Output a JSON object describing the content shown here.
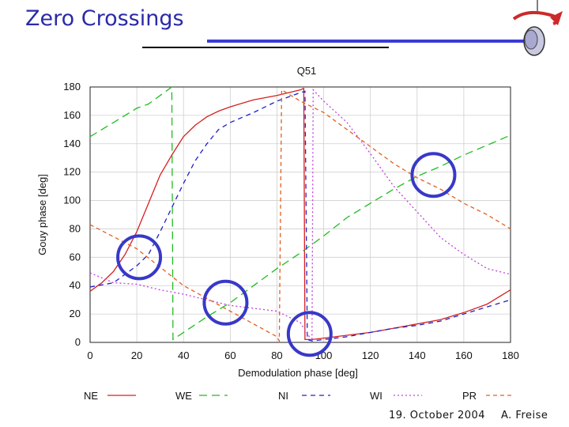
{
  "slide": {
    "title": "Zero Crossings",
    "footer_date": "19. October 2004",
    "footer_author": "A. Freise"
  },
  "colors": {
    "title": "#2a2aa8",
    "accent_bar": "#3a3ad8",
    "circle": "#3838c8",
    "arrow": "#cc2a2a"
  },
  "chart_data": {
    "type": "line",
    "title": "Q51",
    "xlabel": "Demodulation phase [deg]",
    "ylabel": "Gouy phase [deg]",
    "xlim": [
      0,
      180
    ],
    "ylim": [
      0,
      180
    ],
    "grid": true,
    "xticks": [
      0,
      20,
      40,
      60,
      80,
      100,
      120,
      140,
      160,
      180
    ],
    "yticks": [
      0,
      20,
      40,
      60,
      80,
      100,
      120,
      140,
      160,
      180
    ],
    "legend_position": "bottom",
    "series": [
      {
        "name": "NE",
        "color": "#d42020",
        "dash": "solid",
        "points": [
          [
            0,
            36
          ],
          [
            5,
            42
          ],
          [
            10,
            50
          ],
          [
            15,
            62
          ],
          [
            20,
            78
          ],
          [
            25,
            98
          ],
          [
            30,
            118
          ],
          [
            35,
            132
          ],
          [
            40,
            145
          ],
          [
            45,
            153
          ],
          [
            50,
            159
          ],
          [
            55,
            163
          ],
          [
            60,
            166
          ],
          [
            70,
            171
          ],
          [
            80,
            174
          ],
          [
            90,
            178
          ],
          [
            91.5,
            179
          ],
          [
            92,
            2
          ],
          [
            95,
            2
          ],
          [
            100,
            3
          ],
          [
            110,
            5
          ],
          [
            120,
            7
          ],
          [
            130,
            10
          ],
          [
            140,
            13
          ],
          [
            150,
            16
          ],
          [
            160,
            21
          ],
          [
            170,
            27
          ],
          [
            175,
            32
          ],
          [
            180,
            37
          ]
        ]
      },
      {
        "name": "WE",
        "color": "#22bb22",
        "dash": "long",
        "points": [
          [
            0,
            145
          ],
          [
            10,
            155
          ],
          [
            20,
            165
          ],
          [
            25,
            168
          ],
          [
            35,
            180
          ],
          [
            35.5,
            2
          ],
          [
            40,
            7
          ],
          [
            50,
            18
          ],
          [
            60,
            28
          ],
          [
            70,
            40
          ],
          [
            80,
            52
          ],
          [
            90,
            63
          ],
          [
            100,
            75
          ],
          [
            110,
            88
          ],
          [
            120,
            98
          ],
          [
            130,
            108
          ],
          [
            140,
            117
          ],
          [
            150,
            124
          ],
          [
            160,
            132
          ],
          [
            170,
            139
          ],
          [
            180,
            146
          ]
        ]
      },
      {
        "name": "NI",
        "color": "#2020c8",
        "dash": "dash",
        "points": [
          [
            0,
            39
          ],
          [
            10,
            42
          ],
          [
            20,
            54
          ],
          [
            25,
            62
          ],
          [
            30,
            78
          ],
          [
            35,
            95
          ],
          [
            40,
            112
          ],
          [
            45,
            128
          ],
          [
            50,
            140
          ],
          [
            55,
            150
          ],
          [
            60,
            155
          ],
          [
            70,
            162
          ],
          [
            80,
            170
          ],
          [
            90,
            176
          ],
          [
            92,
            177
          ],
          [
            93,
            2
          ],
          [
            95,
            1
          ],
          [
            100,
            2
          ],
          [
            110,
            4
          ],
          [
            120,
            7
          ],
          [
            130,
            10
          ],
          [
            140,
            12
          ],
          [
            150,
            15
          ],
          [
            160,
            20
          ],
          [
            170,
            25
          ],
          [
            180,
            30
          ]
        ]
      },
      {
        "name": "WI",
        "color": "#c040e0",
        "dash": "dot",
        "points": [
          [
            0,
            49
          ],
          [
            10,
            42
          ],
          [
            20,
            41
          ],
          [
            30,
            37
          ],
          [
            40,
            34
          ],
          [
            50,
            30
          ],
          [
            60,
            26
          ],
          [
            70,
            24
          ],
          [
            80,
            22
          ],
          [
            90,
            14
          ],
          [
            95,
            1
          ],
          [
            95.5,
            178
          ],
          [
            100,
            170
          ],
          [
            110,
            155
          ],
          [
            120,
            133
          ],
          [
            130,
            110
          ],
          [
            140,
            92
          ],
          [
            150,
            74
          ],
          [
            160,
            62
          ],
          [
            170,
            52
          ],
          [
            180,
            48
          ]
        ]
      },
      {
        "name": "PR",
        "color": "#e06020",
        "dash": "short",
        "points": [
          [
            0,
            83
          ],
          [
            20,
            66
          ],
          [
            40,
            40
          ],
          [
            60,
            22
          ],
          [
            80,
            4
          ],
          [
            81,
            1
          ],
          [
            82,
            178
          ],
          [
            90,
            170
          ],
          [
            100,
            162
          ],
          [
            110,
            150
          ],
          [
            120,
            138
          ],
          [
            130,
            126
          ],
          [
            140,
            116
          ],
          [
            150,
            108
          ],
          [
            160,
            98
          ],
          [
            170,
            90
          ],
          [
            180,
            80
          ]
        ]
      }
    ],
    "annotations": [
      {
        "type": "circle",
        "x": 21,
        "y": 60
      },
      {
        "type": "circle",
        "x": 58,
        "y": 28
      },
      {
        "type": "circle",
        "x": 94,
        "y": 6
      },
      {
        "type": "circle",
        "x": 147,
        "y": 118
      }
    ]
  }
}
